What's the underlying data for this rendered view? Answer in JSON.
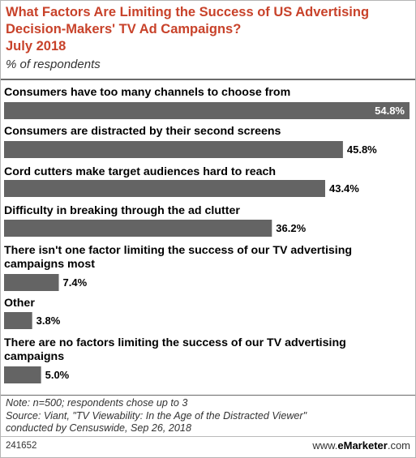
{
  "title": "What Factors Are Limiting the Success of US Advertising Decision-Makers' TV Ad Campaigns?\nJuly 2018",
  "subtitle": "% of respondents",
  "chart_data": {
    "type": "bar",
    "orientation": "horizontal",
    "title": "What Factors Are Limiting the Success of US Advertising Decision-Makers' TV Ad Campaigns? July 2018",
    "subtitle": "% of respondents",
    "categories": [
      "Consumers have too many channels to choose from",
      "Consumers are distracted by their second screens",
      "Cord cutters make target audiences hard to reach",
      "Difficulty in breaking through the ad clutter",
      "There isn't one factor limiting the success of our TV advertising campaigns most",
      "Other",
      "There are no factors limiting the success of our TV advertising campaigns"
    ],
    "category_lines": [
      [
        "Consumers have too many channels to choose from"
      ],
      [
        "Consumers are distracted by their second screens"
      ],
      [
        "Cord cutters make target audiences hard to reach"
      ],
      [
        "Difficulty in breaking through the ad clutter"
      ],
      [
        "There isn't one factor limiting the success of our TV advertising",
        "campaigns most"
      ],
      [
        "Other"
      ],
      [
        "There are no factors limiting the success of our TV advertising",
        "campaigns"
      ]
    ],
    "values": [
      54.8,
      45.8,
      43.4,
      36.2,
      7.4,
      3.8,
      5.0
    ],
    "value_labels": [
      "54.8%",
      "45.8%",
      "43.4%",
      "36.2%",
      "7.4%",
      "3.8%",
      "5.0%"
    ],
    "bar_color": "#646464",
    "label_inside_color": "#ffffff",
    "label_outside_color": "#000000",
    "xlim": [
      0,
      54.8
    ],
    "grid": false
  },
  "notes": [
    "Note: n=500; respondents chose up to 3",
    "Source: Viant, \"TV Viewability: In the Age of the Distracted Viewer\"",
    "conducted by Censuswide, Sep 26, 2018"
  ],
  "footer": {
    "chart_id": "241652",
    "brand_prefix": "www.",
    "brand_name": "eMarketer",
    "brand_suffix": ".com"
  },
  "colors": {
    "title": "#c8422a",
    "bar": "#646464"
  }
}
